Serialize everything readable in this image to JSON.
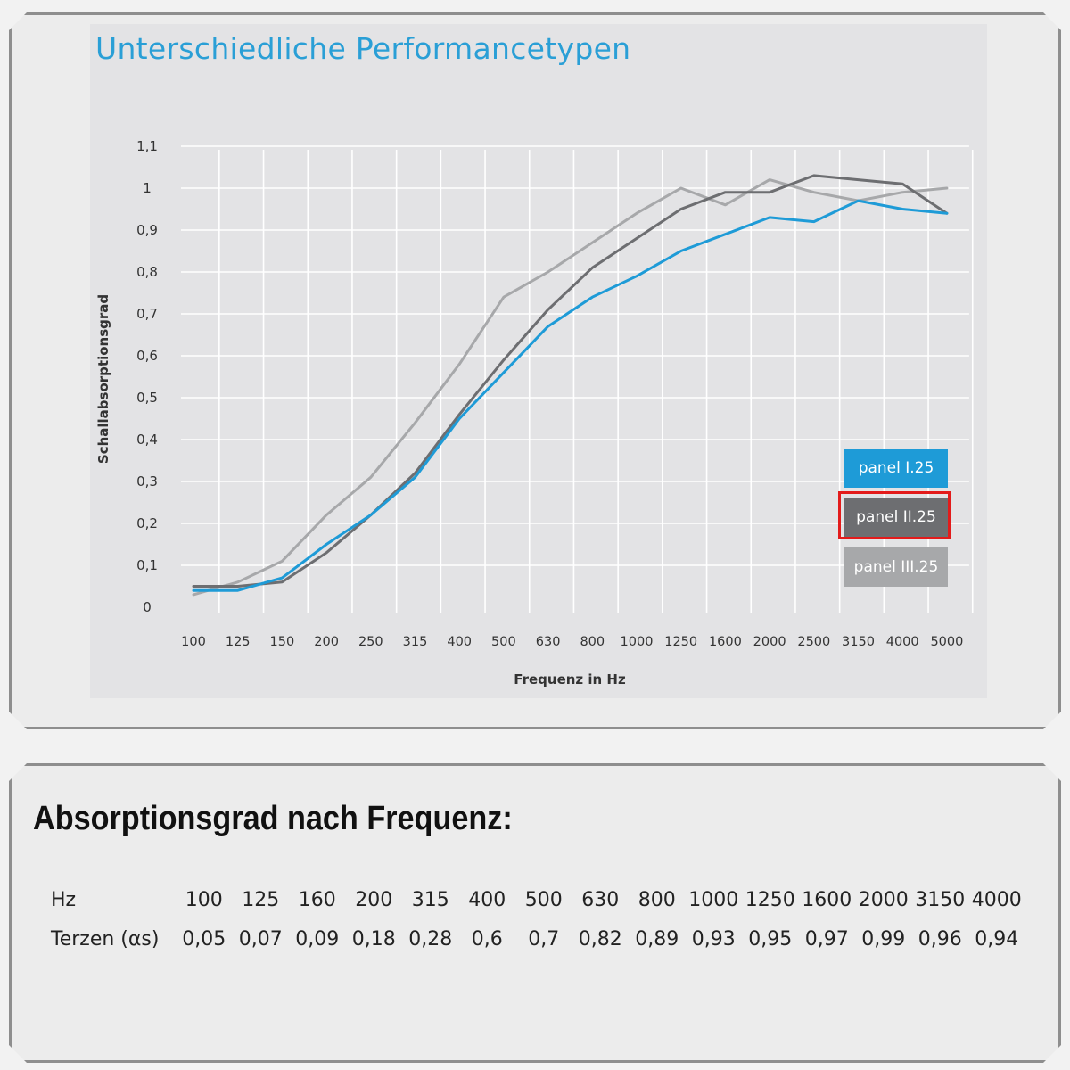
{
  "chart": {
    "title": "Unterschiedliche Performancetypen"
  },
  "chart_data": {
    "type": "line",
    "title": "Unterschiedliche Performancetypen",
    "xlabel": "Frequenz in Hz",
    "ylabel": "Schallabsorptionsgrad",
    "categories": [
      "100",
      "125",
      "150",
      "200",
      "250",
      "315",
      "400",
      "500",
      "630",
      "800",
      "1000",
      "1250",
      "1600",
      "2000",
      "2500",
      "3150",
      "4000",
      "5000"
    ],
    "yticks": [
      "0",
      "0,1",
      "0,2",
      "0,3",
      "0,4",
      "0,5",
      "0,6",
      "0,7",
      "0,8",
      "0,9",
      "1",
      "1,1"
    ],
    "ylim": [
      0,
      1.1
    ],
    "grid": true,
    "legend_position": "lower-right",
    "series": [
      {
        "name": "panel I.25",
        "color": "#1e9bd7",
        "values": [
          0.04,
          0.04,
          0.07,
          0.15,
          0.22,
          0.31,
          0.45,
          0.56,
          0.67,
          0.74,
          0.79,
          0.85,
          0.89,
          0.93,
          0.92,
          0.97,
          0.95,
          0.94
        ]
      },
      {
        "name": "panel II.25",
        "color": "#6d6e71",
        "values": [
          0.05,
          0.05,
          0.06,
          0.13,
          0.22,
          0.32,
          0.46,
          0.59,
          0.71,
          0.81,
          0.88,
          0.95,
          0.99,
          0.99,
          1.03,
          1.02,
          1.01,
          0.94
        ]
      },
      {
        "name": "panel III.25",
        "color": "#a7a8aa",
        "values": [
          0.03,
          0.06,
          0.11,
          0.22,
          0.31,
          0.44,
          0.58,
          0.74,
          0.8,
          0.87,
          0.94,
          1.0,
          0.96,
          1.02,
          0.99,
          0.97,
          0.99,
          1.0
        ]
      }
    ]
  },
  "legend": {
    "items": [
      {
        "label": "panel I.25",
        "color": "#1e9bd7"
      },
      {
        "label": "panel II.25",
        "color": "#6d6e71"
      },
      {
        "label": "panel III.25",
        "color": "#a7a8aa"
      }
    ],
    "highlight_color": "#e31b1b"
  },
  "table": {
    "title": "Absorptionsgrad nach Frequenz:",
    "row1_label": "Hz",
    "row2_label": "Terzen (αs)",
    "frequencies": [
      "100",
      "125",
      "160",
      "200",
      "315",
      "400",
      "500",
      "630",
      "800",
      "1000",
      "1250",
      "1600",
      "2000",
      "3150",
      "4000"
    ],
    "values": [
      "0,05",
      "0,07",
      "0,09",
      "0,18",
      "0,28",
      "0,6",
      "0,7",
      "0,82",
      "0,89",
      "0,93",
      "0,95",
      "0,97",
      "0,99",
      "0,96",
      "0,94"
    ]
  }
}
